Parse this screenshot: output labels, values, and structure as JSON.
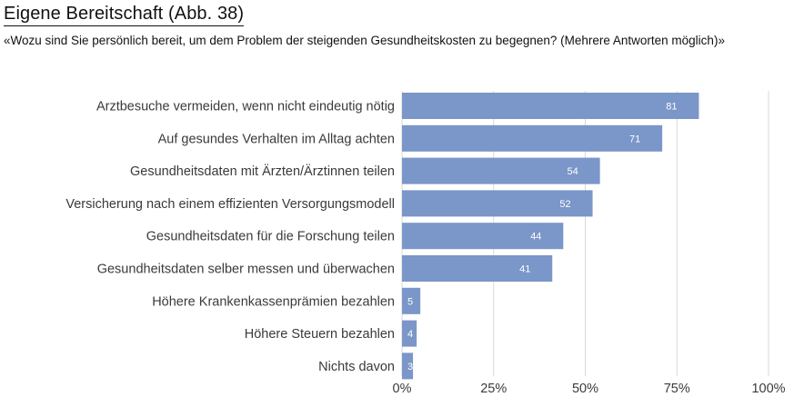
{
  "header": {
    "title": "Eigene Bereitschaft  (Abb. 38)",
    "question": "«Wozu sind Sie persönlich bereit, um dem Problem der steigenden Gesundheitskosten zu begegnen? (Mehrere Antworten möglich)»"
  },
  "chart_data": {
    "type": "bar",
    "orientation": "horizontal",
    "title": "Eigene Bereitschaft  (Abb. 38)",
    "categories": [
      "Arztbesuche vermeiden, wenn nicht eindeutig nötig",
      "Auf gesundes Verhalten im Alltag achten",
      "Gesundheitsdaten mit Ärzten/Ärztinnen teilen",
      "Versicherung nach einem effizienten Versorgungsmodell",
      "Gesundheitsdaten für die Forschung teilen",
      "Gesundheitsdaten selber messen und überwachen",
      "Höhere Krankenkassenprämien bezahlen",
      "Höhere Steuern bezahlen",
      "Nichts davon"
    ],
    "values": [
      81,
      71,
      54,
      52,
      44,
      41,
      5,
      4,
      3
    ],
    "xlim": [
      0,
      100
    ],
    "xticks": [
      "0%",
      "25%",
      "50%",
      "75%",
      "100%"
    ],
    "grid": true,
    "bar_color": "#7b96c8"
  }
}
